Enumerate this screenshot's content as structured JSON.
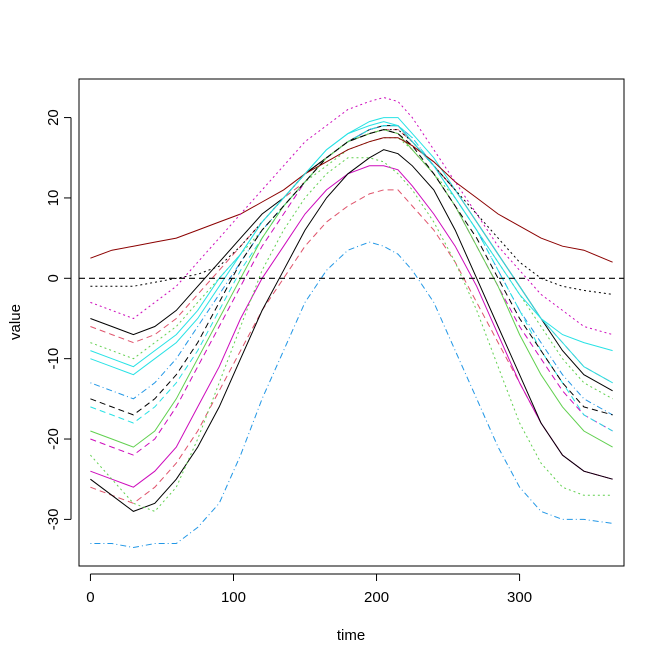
{
  "chart_data": {
    "type": "line",
    "title": "",
    "xlabel": "time",
    "ylabel": "value",
    "xlim": [
      -8,
      373
    ],
    "ylim": [
      -35.8,
      24.8
    ],
    "x_ticks": [
      0,
      100,
      200,
      300
    ],
    "y_ticks": [
      -30,
      -20,
      -10,
      0,
      10,
      20
    ],
    "reference_line": {
      "y": 0,
      "style": "dashed",
      "color": "#000000"
    },
    "grid": false,
    "legend": "none",
    "x": [
      0,
      15,
      30,
      45,
      60,
      75,
      90,
      105,
      120,
      135,
      150,
      165,
      180,
      195,
      205,
      215,
      225,
      240,
      255,
      270,
      285,
      300,
      315,
      330,
      345,
      365
    ],
    "series": [
      {
        "color": "#000000",
        "dash": "solid",
        "values": [
          -5,
          -6,
          -7,
          -6,
          -4,
          -1,
          2,
          5,
          8,
          10,
          13,
          15,
          17,
          18.5,
          19,
          19,
          17,
          14,
          11,
          7,
          3,
          -1,
          -5,
          -9,
          -12,
          -14
        ]
      },
      {
        "color": "#DF536B",
        "dash": "dashed",
        "values": [
          -6,
          -7,
          -8,
          -7,
          -5,
          -2,
          1,
          4,
          7,
          10,
          12,
          15,
          17,
          18,
          18.5,
          18.5,
          17,
          14,
          11,
          7,
          3,
          -1,
          -5,
          -8,
          -11,
          -13
        ]
      },
      {
        "color": "#61D04F",
        "dash": "dotted",
        "values": [
          -8,
          -9,
          -10,
          -8,
          -6,
          -3,
          0,
          3,
          6,
          9,
          12,
          14,
          16,
          17,
          17.5,
          17.5,
          16,
          13,
          10,
          6,
          2,
          -2,
          -6,
          -10,
          -13,
          -15
        ]
      },
      {
        "color": "#2297E6",
        "dash": "dotdash",
        "values": [
          -13,
          -14,
          -15,
          -13,
          -10,
          -6,
          -2,
          2,
          6,
          9,
          12,
          15,
          17,
          18.5,
          19,
          19,
          17.5,
          14,
          10,
          6,
          1,
          -4,
          -8,
          -12,
          -15,
          -17
        ]
      },
      {
        "color": "#28E2E5",
        "dash": "solid",
        "values": [
          -9,
          -10,
          -11,
          -9,
          -7,
          -4,
          0,
          3,
          7,
          10,
          13,
          16,
          18,
          19.5,
          20,
          20,
          18,
          15,
          11,
          7,
          3,
          -1,
          -5,
          -8,
          -11,
          -13
        ]
      },
      {
        "color": "#CD0BBC",
        "dash": "dashed",
        "values": [
          -20,
          -21,
          -22,
          -20,
          -16,
          -11,
          -6,
          -1,
          4,
          8,
          12,
          15,
          17,
          18,
          18.5,
          18,
          16,
          13,
          9,
          4,
          -1,
          -6,
          -10,
          -14,
          -17,
          -19
        ]
      },
      {
        "color": "#000000",
        "dash": "dotted",
        "values": [
          -1,
          -1,
          -1,
          -0.5,
          0,
          0.5,
          1.5,
          4,
          7,
          10,
          13,
          15,
          17,
          18,
          18.5,
          18.5,
          17,
          14,
          11,
          8,
          5,
          2,
          0,
          -1,
          -1.5,
          -2
        ]
      },
      {
        "color": "#DF536B",
        "dash": "dashed",
        "values": [
          -26,
          -27,
          -28,
          -26,
          -23,
          -19,
          -14,
          -9,
          -4,
          0,
          4,
          7,
          9,
          10.5,
          11,
          11,
          9,
          6,
          2,
          -3,
          -8,
          -13,
          -18,
          -22,
          -24,
          -25
        ]
      },
      {
        "color": "#28E2E5",
        "dash": "dashed",
        "values": [
          -16,
          -17,
          -18,
          -16,
          -13,
          -9,
          -4,
          1,
          5,
          9,
          12,
          15,
          17,
          18.5,
          19,
          19,
          17.5,
          14,
          10,
          6,
          1,
          -4,
          -9,
          -13,
          -17,
          -19
        ]
      },
      {
        "color": "#61D04F",
        "dash": "solid",
        "values": [
          -19,
          -20,
          -21,
          -19,
          -15,
          -10,
          -5,
          0,
          5,
          9,
          12,
          15,
          17,
          18,
          18.5,
          18,
          16,
          13,
          9,
          4,
          -1,
          -7,
          -12,
          -16,
          -19,
          -21
        ]
      },
      {
        "color": "#000000",
        "dash": "dashed",
        "values": [
          -15,
          -16,
          -17,
          -15,
          -12,
          -8,
          -3,
          2,
          6,
          9,
          12,
          15,
          17,
          18,
          18.5,
          18,
          16.5,
          13,
          9,
          5,
          0,
          -5,
          -9,
          -13,
          -16,
          -17
        ]
      },
      {
        "color": "#CD0BBC",
        "dash": "solid",
        "values": [
          -24,
          -25,
          -26,
          -24,
          -21,
          -16,
          -11,
          -5,
          0,
          4,
          8,
          11,
          13,
          14,
          14,
          13.5,
          11.5,
          8,
          4,
          -1,
          -7,
          -13,
          -18,
          -22,
          -24,
          -25
        ]
      },
      {
        "color": "#000000",
        "dash": "solid",
        "values": [
          -25,
          -27,
          -29,
          -28,
          -25,
          -21,
          -16,
          -10,
          -4,
          1,
          6,
          10,
          13,
          15,
          16,
          15.5,
          14,
          11,
          6,
          0,
          -6,
          -12,
          -18,
          -22,
          -24,
          -25
        ]
      },
      {
        "color": "#2297E6",
        "dash": "dotdash",
        "values": [
          -33,
          -33,
          -33.5,
          -33,
          -33,
          -31,
          -28,
          -22,
          -15,
          -9,
          -3,
          1,
          3.5,
          4.5,
          4,
          3,
          1,
          -3,
          -9,
          -15,
          -21,
          -26,
          -29,
          -30,
          -30,
          -30.5
        ]
      },
      {
        "color": "#61D04F",
        "dash": "dotted",
        "values": [
          -22,
          -25,
          -28,
          -29,
          -26,
          -20,
          -13,
          -6,
          1,
          6,
          10,
          13,
          15,
          15,
          14.5,
          13,
          11,
          7,
          2,
          -4,
          -11,
          -18,
          -23,
          -26,
          -27,
          -27
        ]
      },
      {
        "color": "#8B0000",
        "dash": "solid",
        "values": [
          2.5,
          3.5,
          4,
          4.5,
          5,
          6,
          7,
          8,
          9.5,
          11,
          13,
          14.5,
          16,
          17,
          17.5,
          17.5,
          16.5,
          14.5,
          12,
          10,
          8,
          6.5,
          5,
          4,
          3.5,
          2
        ]
      },
      {
        "color": "#CD0BBC",
        "dash": "dotted",
        "values": [
          -3,
          -4,
          -5,
          -3,
          -1,
          2,
          5,
          8,
          11,
          14,
          17,
          19,
          21,
          22,
          22.5,
          22,
          20,
          16,
          12,
          8,
          4,
          1,
          -2,
          -4,
          -6,
          -7
        ]
      },
      {
        "color": "#28E2E5",
        "dash": "solid",
        "values": [
          -10,
          -11,
          -12,
          -10,
          -8,
          -5,
          -1,
          3,
          7,
          10,
          13,
          16,
          18,
          19,
          19.5,
          19,
          17,
          14,
          10,
          6,
          2,
          -2,
          -5,
          -7,
          -8,
          -9
        ]
      }
    ]
  }
}
